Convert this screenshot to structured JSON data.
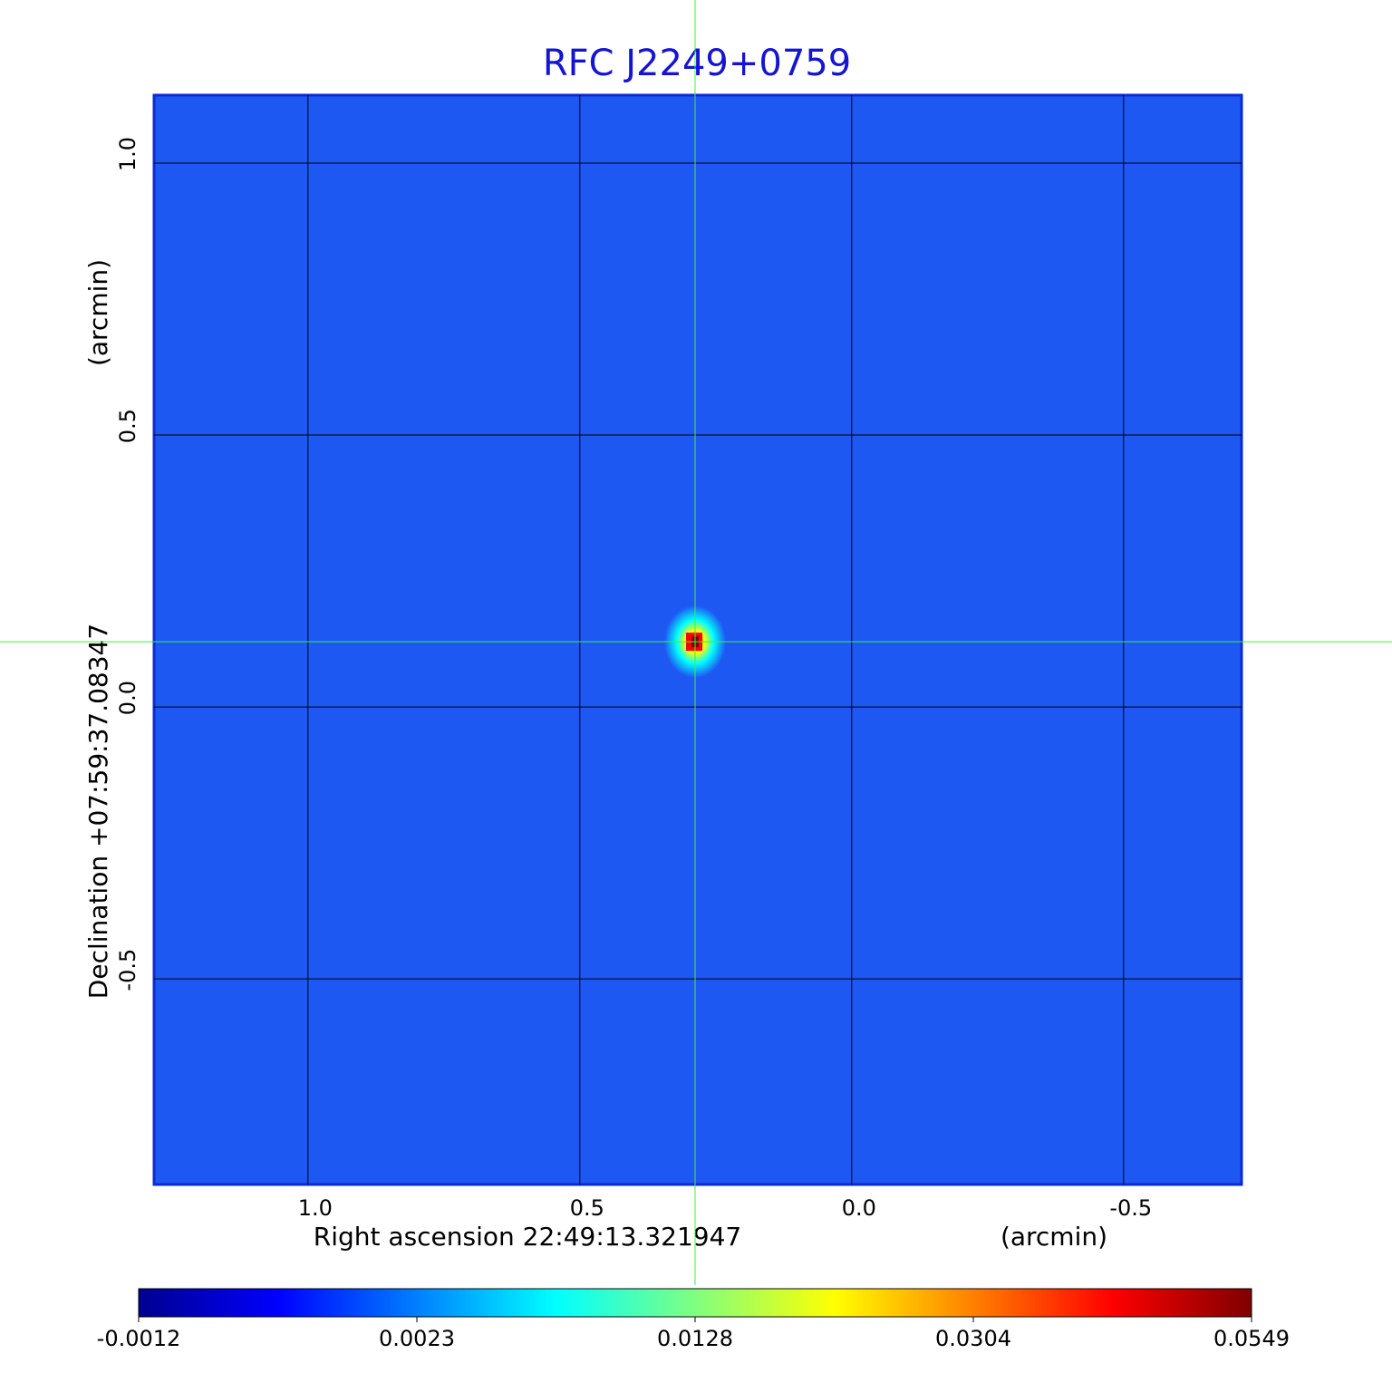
{
  "chart_data": {
    "type": "heatmap",
    "title": "RFC J2249+0759",
    "xlabel": "Right ascension  22:49:13.321947",
    "xunit": "(arcmin)",
    "ylabel": "Declination  +07:59:37.08347",
    "yunit": "(arcmin)",
    "xlim": [
      1.283,
      -0.717
    ],
    "ylim": [
      -0.878,
      1.125
    ],
    "xticks": [
      {
        "value": 1,
        "label": "1.0"
      },
      0.5,
      {
        "value": 0,
        "label": "0.0"
      },
      -0.5
    ],
    "yticks": [
      {
        "value": 1,
        "label": "1.0"
      },
      0.5,
      {
        "value": 0,
        "label": "0.0"
      },
      -0.5
    ],
    "grid": true,
    "background_color": "#1d58f2",
    "source": {
      "x": 0.288,
      "y": 0.12,
      "value": 0.0549
    },
    "colorbar": {
      "ticks": [
        -0.0012,
        0.0023,
        0.0128,
        0.0304,
        0.0549
      ],
      "colors": [
        "#00008f",
        "#0000ff",
        "#00ffff",
        "#ffff00",
        "#ff0000",
        "#800000"
      ]
    }
  }
}
